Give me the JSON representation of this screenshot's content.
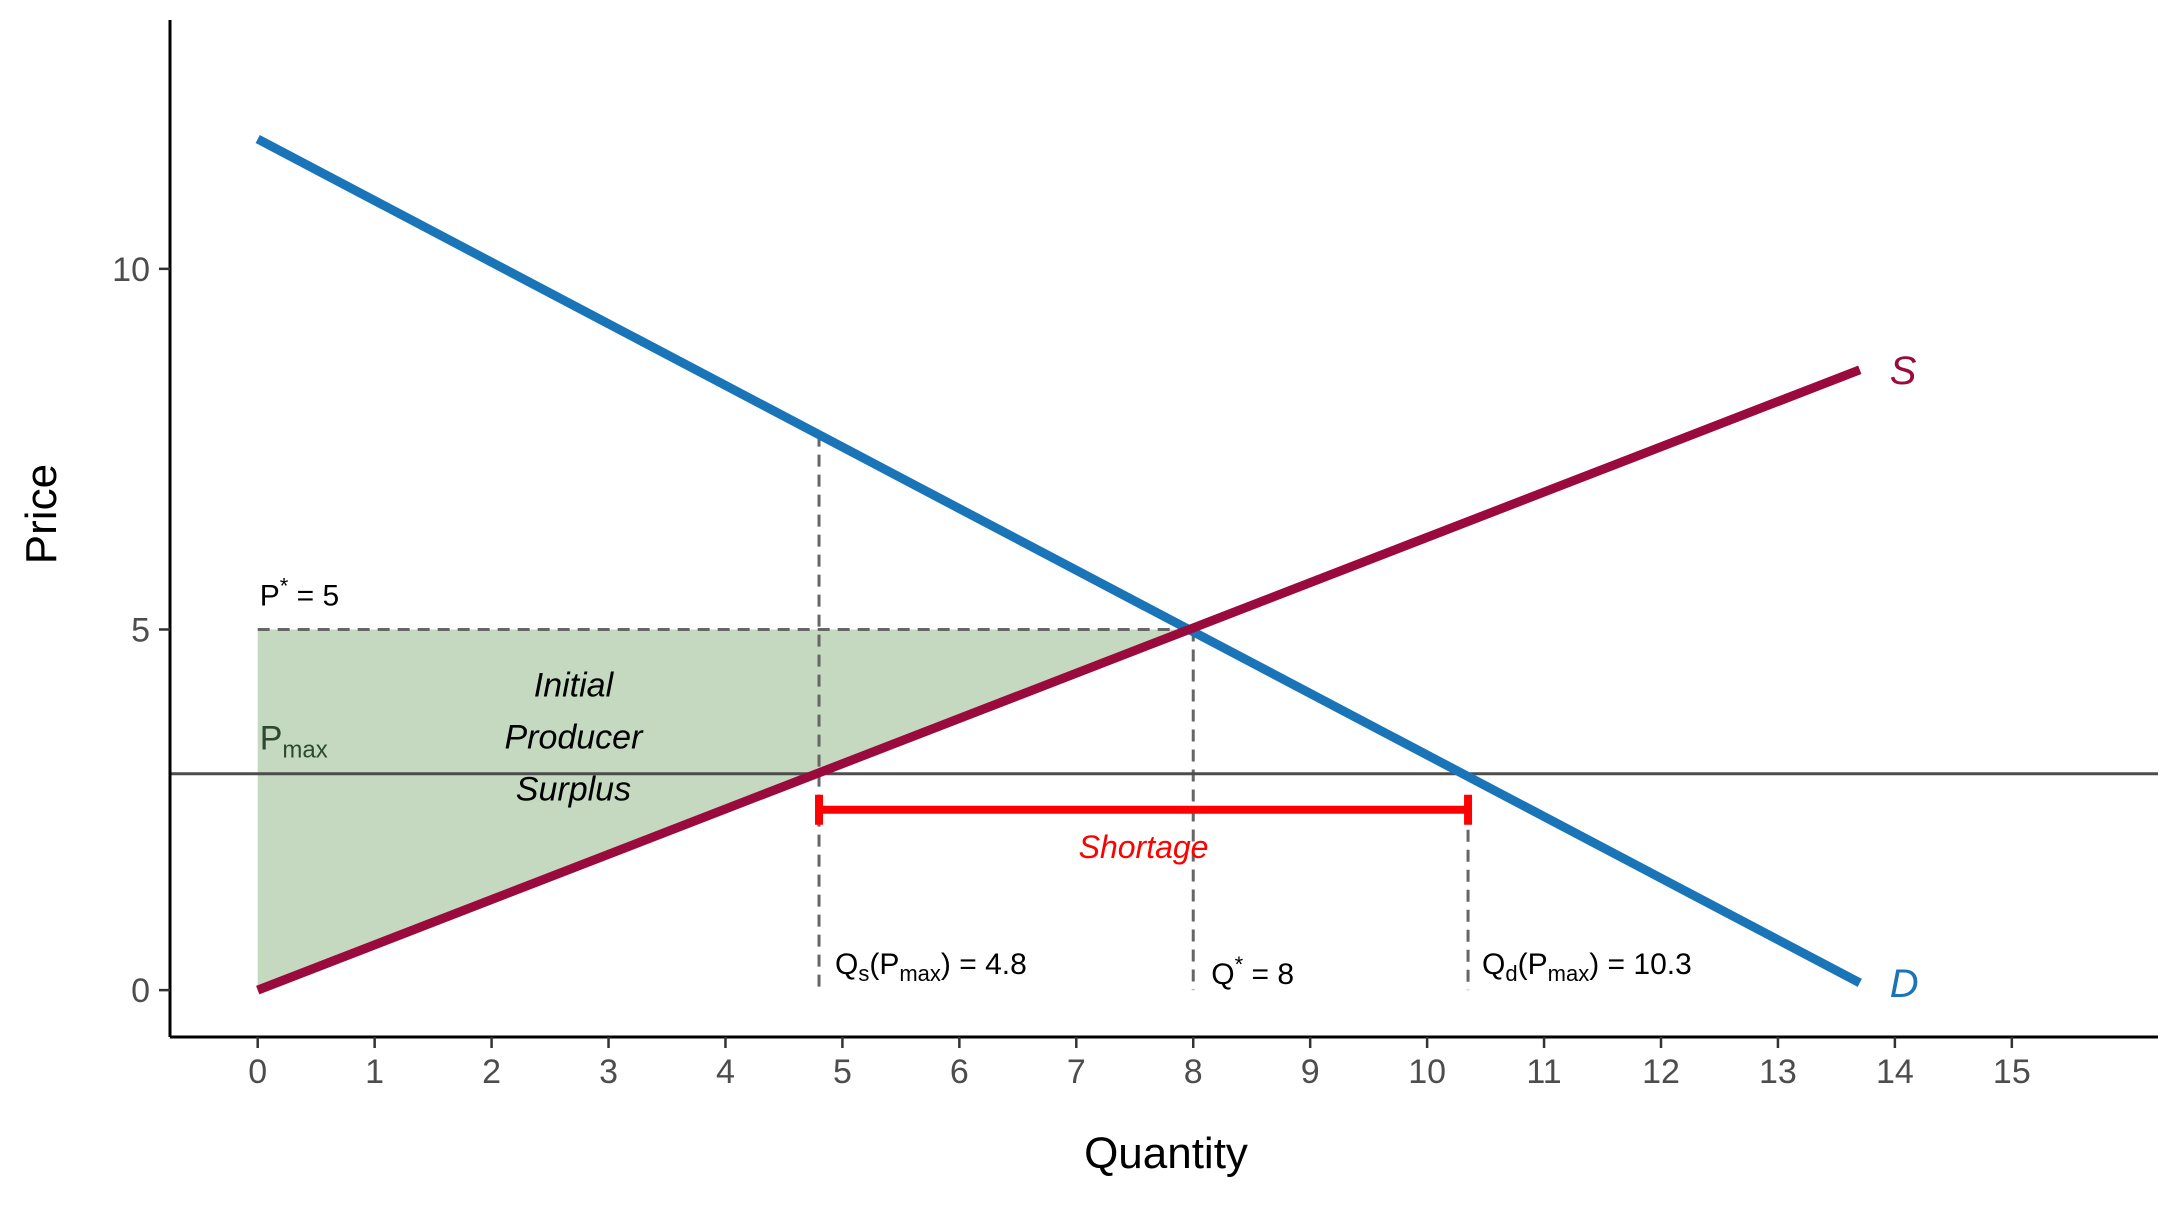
{
  "chart_data": {
    "type": "line",
    "xlabel": "Quantity",
    "ylabel": "Price",
    "xlim": [
      -0.75,
      16.25
    ],
    "ylim": [
      -0.65,
      13.45
    ],
    "x_ticks": [
      0,
      1,
      2,
      3,
      4,
      5,
      6,
      7,
      8,
      9,
      10,
      11,
      12,
      13,
      14,
      15
    ],
    "y_ticks": [
      0,
      5,
      10
    ],
    "grid": false,
    "series": [
      {
        "name": "D",
        "color": "#1a75b8",
        "x": [
          0,
          13.7
        ],
        "y": [
          11.8,
          0.1
        ]
      },
      {
        "name": "S",
        "color": "#9b0a3c",
        "x": [
          0,
          13.7
        ],
        "y": [
          0,
          8.6
        ]
      }
    ],
    "equilibrium": {
      "price": 5,
      "quantity": 8
    },
    "price_ceiling": {
      "value": 3,
      "label_main": "P",
      "label_sub": "max",
      "color": "#4d4d4d"
    },
    "qs_at_pmax": 4.8,
    "qd_at_pmax": 10.3,
    "shortage": {
      "from": 4.8,
      "to": 10.35,
      "y": 2.5,
      "label": "Shortage",
      "color": "#ff0000"
    },
    "shaded_region": {
      "fill": "#c4d9c0",
      "vertices": [
        [
          0,
          0
        ],
        [
          0,
          5
        ],
        [
          8,
          5
        ]
      ]
    },
    "surplus_label": [
      "Initial",
      "Producer",
      "Surplus"
    ],
    "annotations": {
      "p_star": {
        "main": "P",
        "sup": "*",
        "rest": " = 5"
      },
      "q_star": {
        "main": "Q",
        "sup": "*",
        "rest": " = 8"
      },
      "qs": {
        "main": "Q",
        "sub": "s",
        "paren_open": "(P",
        "paren_sub": "max",
        "paren_close": ")",
        "rest": " = 4.8"
      },
      "qd": {
        "main": "Q",
        "sub": "d",
        "paren_open": "(P",
        "paren_sub": "max",
        "paren_close": ")",
        "rest": " = 10.3"
      }
    }
  }
}
